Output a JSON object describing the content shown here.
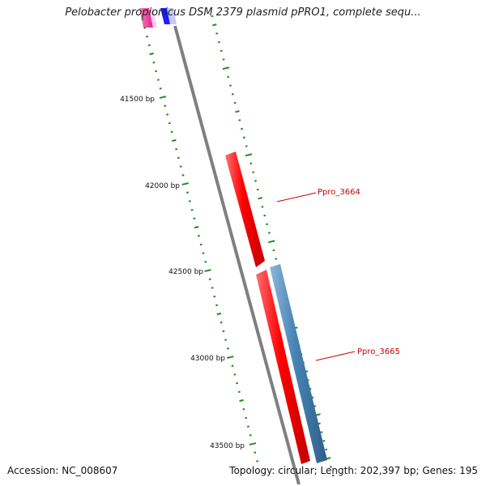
{
  "title": "Pelobacter propionicus DSM 2379 plasmid pPRO1, complete sequ...",
  "footer": {
    "accession": "Accession: NC_008607",
    "summary": "Topology: circular; Length: 202,397 bp; Genes: 195"
  },
  "ruler": {
    "ticks": [
      {
        "label": "41500 bp"
      },
      {
        "label": "42000 bp"
      },
      {
        "label": "42500 bp"
      },
      {
        "label": "43000 bp"
      },
      {
        "label": "43500 bp"
      }
    ]
  },
  "genes": [
    {
      "name": "Ppro_3664",
      "strand": "forward",
      "color": "#ff0000"
    },
    {
      "name": "Ppro_3665",
      "strand": "reverse",
      "color": "#4682b4"
    }
  ],
  "colors": {
    "backbone": "#8a8a8a",
    "ruler": "#228b22",
    "label": "#cc0000"
  }
}
